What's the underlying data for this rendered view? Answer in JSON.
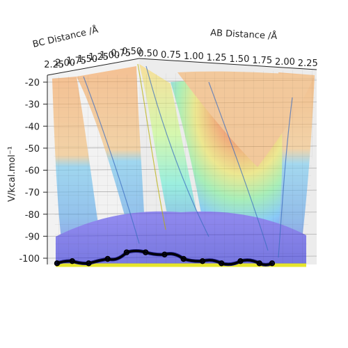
{
  "chart_data": {
    "type": "surface3d",
    "xlabel": "AB Distance /Å",
    "ylabel": "BC Distance /Å",
    "zlabel": "V/kcal.mol⁻¹",
    "x_ticks": [
      "0.50",
      "0.75",
      "1.00",
      "1.25",
      "1.50",
      "1.75",
      "2.00",
      "2.25"
    ],
    "y_ticks": [
      "2.25",
      "2.00",
      "1.75",
      "1.50",
      "1.25",
      "1.00",
      "0.75",
      "0.50"
    ],
    "z_ticks": [
      "-20",
      "-30",
      "-40",
      "-50",
      "-60",
      "-70",
      "-80",
      "-90",
      "-100"
    ],
    "xlim": [
      0.5,
      2.25
    ],
    "ylim": [
      0.5,
      2.25
    ],
    "zlim": [
      -105,
      -20
    ],
    "colormap": "jet",
    "surface_alpha": 0.5,
    "grid": true,
    "trajectory": {
      "color": "#000000",
      "x": [
        0.5,
        0.62,
        0.75,
        0.9,
        1.05,
        1.2,
        1.35,
        1.5,
        1.65,
        1.8,
        1.95,
        2.1,
        2.2
      ],
      "y": [
        2.2,
        2.05,
        1.9,
        1.7,
        1.5,
        1.3,
        1.1,
        0.95,
        0.85,
        0.78,
        0.74,
        0.72,
        0.71
      ],
      "z": [
        -102,
        -101,
        -102,
        -100,
        -97,
        -97,
        -98,
        -100,
        -101,
        -102,
        -101,
        -102,
        -102
      ]
    }
  }
}
